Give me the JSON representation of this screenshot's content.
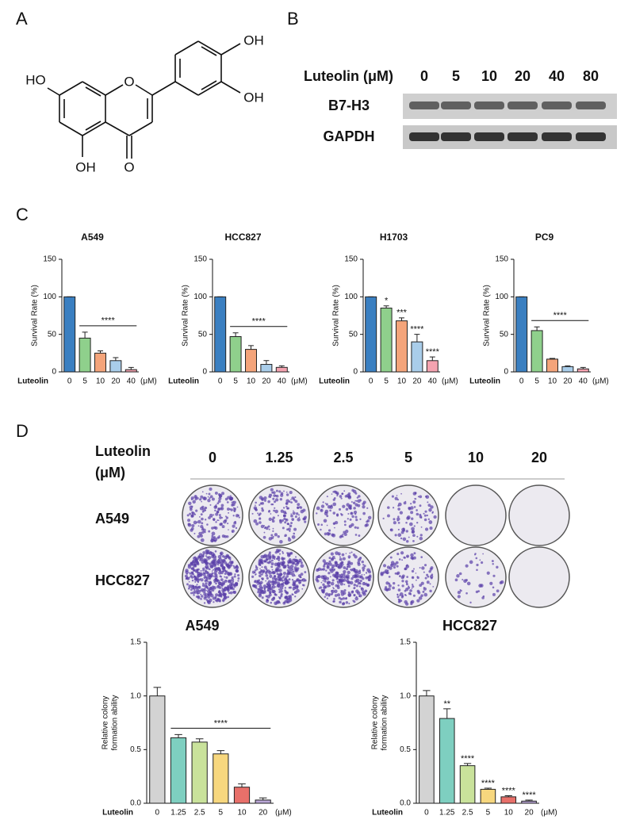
{
  "panel_labels": [
    "A",
    "B",
    "C",
    "D"
  ],
  "structure": {
    "labels": [
      "HO",
      "OH",
      "OH",
      "OH",
      "O",
      "O"
    ]
  },
  "blot": {
    "treatment_label": "Luteolin (μM)",
    "doses": [
      "0",
      "5",
      "10",
      "20",
      "40",
      "80"
    ],
    "rows": [
      "B7-H3",
      "GAPDH"
    ]
  },
  "colony": {
    "treatment_label": [
      "Luteolin",
      "(μM)"
    ],
    "doses": [
      "0",
      "1.25",
      "2.5",
      "5",
      "10",
      "20"
    ],
    "rows": [
      "A549",
      "HCC827"
    ]
  },
  "chart_data": [
    {
      "type": "bar",
      "title": "A549",
      "ylabel": [
        "Survival Rate (%)"
      ],
      "xlabel": "Luteolin",
      "xunit": "(μM)",
      "categories": [
        "0",
        "5",
        "10",
        "20",
        "40"
      ],
      "values": [
        100,
        45,
        25,
        15,
        3
      ],
      "errors": [
        0,
        8,
        3,
        4,
        3
      ],
      "colors": [
        "#3a7fc1",
        "#8fd08c",
        "#f4a47a",
        "#a9cdea",
        "#f4a3b0"
      ],
      "annotation": "****",
      "ylim": [
        0,
        150
      ],
      "yticks": [
        0,
        50,
        100,
        150
      ]
    },
    {
      "type": "bar",
      "title": "HCC827",
      "ylabel": [
        "Survival Rate (%)"
      ],
      "xlabel": "Luteolin",
      "xunit": "(μM)",
      "categories": [
        "0",
        "5",
        "10",
        "20",
        "40"
      ],
      "values": [
        100,
        47,
        30,
        10,
        6
      ],
      "errors": [
        0,
        5,
        5,
        5,
        2
      ],
      "colors": [
        "#3a7fc1",
        "#8fd08c",
        "#f4a47a",
        "#a9cdea",
        "#f4a3b0"
      ],
      "annotation": "****",
      "ylim": [
        0,
        150
      ],
      "yticks": [
        0,
        50,
        100,
        150
      ]
    },
    {
      "type": "bar",
      "title": "H1703",
      "ylabel": [
        "Survival Rate (%)"
      ],
      "xlabel": "Luteolin",
      "xunit": "(μM)",
      "categories": [
        "0",
        "5",
        "10",
        "20",
        "40"
      ],
      "values": [
        100,
        85,
        68,
        40,
        15
      ],
      "errors": [
        0,
        3,
        4,
        10,
        5
      ],
      "colors": [
        "#3a7fc1",
        "#8fd08c",
        "#f4a47a",
        "#a9cdea",
        "#f4a3b0"
      ],
      "significance": [
        null,
        "*",
        "***",
        "****",
        "****"
      ],
      "ylim": [
        0,
        150
      ],
      "yticks": [
        0,
        50,
        100,
        150
      ]
    },
    {
      "type": "bar",
      "title": "PC9",
      "ylabel": [
        "Survival Rate (%)"
      ],
      "xlabel": "Luteolin",
      "xunit": "(μM)",
      "categories": [
        "0",
        "5",
        "10",
        "20",
        "40"
      ],
      "values": [
        100,
        55,
        17,
        7,
        4
      ],
      "errors": [
        0,
        5,
        1,
        1,
        2
      ],
      "colors": [
        "#3a7fc1",
        "#8fd08c",
        "#f4a47a",
        "#a9cdea",
        "#f4a3b0"
      ],
      "annotation": "****",
      "ylim": [
        0,
        150
      ],
      "yticks": [
        0,
        50,
        100,
        150
      ]
    },
    {
      "type": "bar",
      "title": "A549",
      "ylabel": [
        "Relative colony",
        "formation ability"
      ],
      "xlabel": "Luteolin",
      "xunit": "(μM)",
      "categories": [
        "0",
        "1.25",
        "2.5",
        "5",
        "10",
        "20"
      ],
      "values": [
        1.0,
        0.61,
        0.57,
        0.46,
        0.15,
        0.03
      ],
      "errors": [
        0.08,
        0.03,
        0.03,
        0.03,
        0.03,
        0.02
      ],
      "colors": [
        "#d3d3d3",
        "#7ecfc0",
        "#c9e29b",
        "#f7d77e",
        "#e8706a",
        "#b9a6d6"
      ],
      "annotation": "****",
      "ylim": [
        0,
        1.5
      ],
      "yticks": [
        {
          "value": 0,
          "label": "0.0"
        },
        0.5,
        {
          "value": 1,
          "label": "1.0"
        },
        1.5
      ]
    },
    {
      "type": "bar",
      "title": "HCC827",
      "ylabel": [
        "Relative colony",
        "formation ability"
      ],
      "xlabel": "Luteolin",
      "xunit": "(μM)",
      "categories": [
        "0",
        "1.25",
        "2.5",
        "5",
        "10",
        "20"
      ],
      "values": [
        1.0,
        0.79,
        0.35,
        0.13,
        0.06,
        0.02
      ],
      "errors": [
        0.05,
        0.09,
        0.02,
        0.01,
        0.01,
        0.01
      ],
      "colors": [
        "#d3d3d3",
        "#7ecfc0",
        "#c9e29b",
        "#f7d77e",
        "#e8706a",
        "#b9a6d6"
      ],
      "significance": [
        null,
        "**",
        "****",
        "****",
        "****",
        "****"
      ],
      "ylim": [
        0,
        1.5
      ],
      "yticks": [
        {
          "value": 0,
          "label": "0.0"
        },
        0.5,
        {
          "value": 1,
          "label": "1.0"
        },
        1.5
      ]
    }
  ]
}
